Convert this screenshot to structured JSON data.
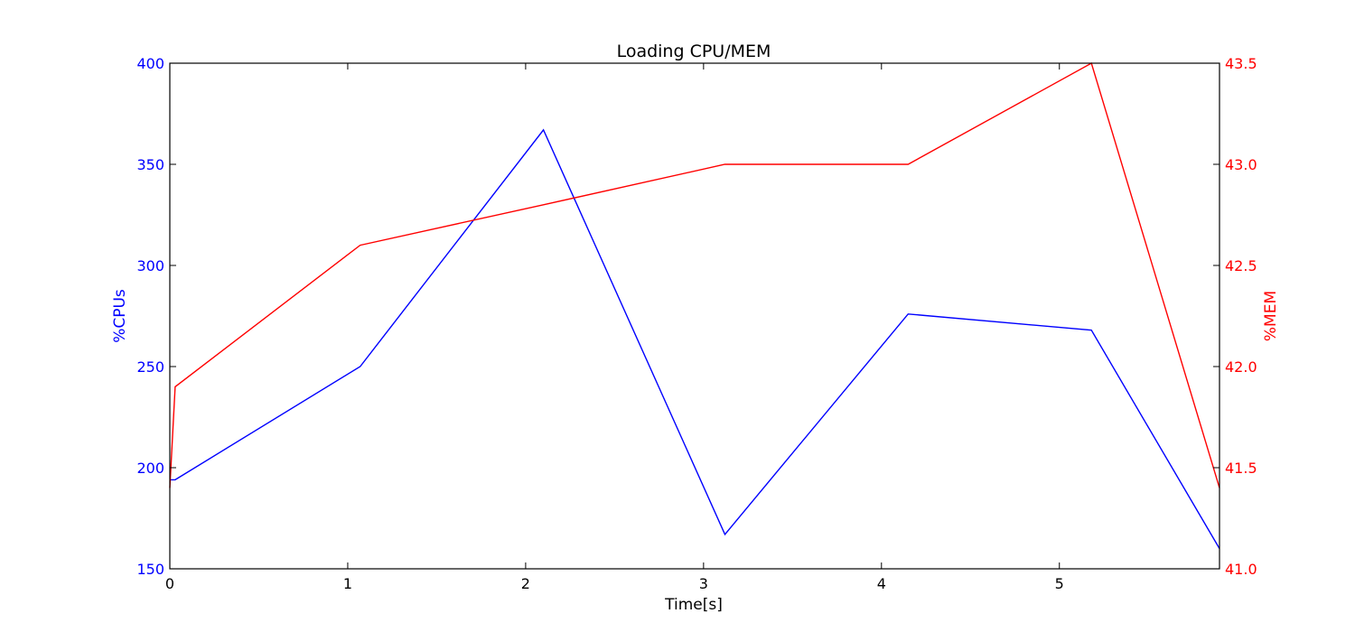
{
  "chart_data": {
    "type": "line",
    "title": "Loading CPU/MEM",
    "xlabel": "Time[s]",
    "xlim": [
      0,
      5.9
    ],
    "x_ticks": [
      "0",
      "1",
      "2",
      "3",
      "4",
      "5"
    ],
    "grid": false,
    "left_axis": {
      "label": "%CPUs",
      "color": "#0000ff",
      "ylim": [
        150,
        400
      ],
      "ticks": [
        "150",
        "200",
        "250",
        "300",
        "350",
        "400"
      ]
    },
    "right_axis": {
      "label": "%MEM",
      "color": "#ff0000",
      "ylim": [
        41.0,
        43.5
      ],
      "ticks": [
        "41.0",
        "41.5",
        "42.0",
        "42.5",
        "43.0",
        "43.5"
      ]
    },
    "series": [
      {
        "axis": "left",
        "color": "#0000ff",
        "points": [
          [
            0,
            194
          ],
          [
            0.03,
            194
          ],
          [
            1.07,
            250
          ],
          [
            2.1,
            367
          ],
          [
            3.12,
            167
          ],
          [
            4.15,
            276
          ],
          [
            5.18,
            268
          ],
          [
            5.9,
            160
          ]
        ]
      },
      {
        "axis": "right",
        "color": "#ff0000",
        "points": [
          [
            0,
            41.4
          ],
          [
            0.03,
            41.9
          ],
          [
            1.07,
            42.6
          ],
          [
            2.1,
            42.8
          ],
          [
            3.12,
            43.0
          ],
          [
            4.15,
            43.0
          ],
          [
            5.18,
            43.5
          ],
          [
            5.9,
            41.4
          ]
        ]
      }
    ]
  }
}
